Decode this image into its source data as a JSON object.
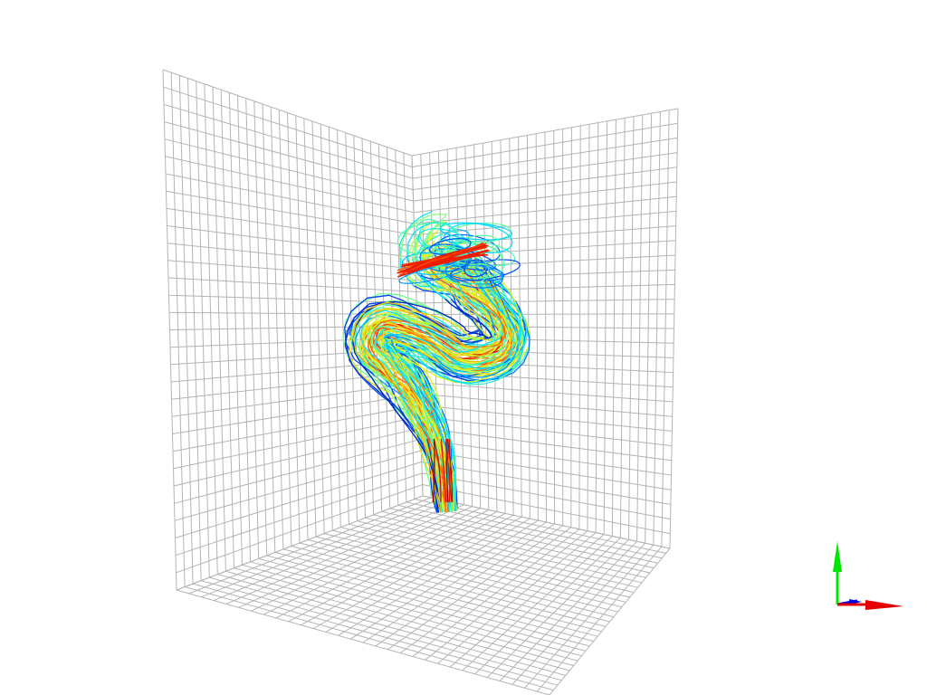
{
  "scene": {
    "background_color": "#ffffff",
    "grid_color": "#b4b4b4",
    "grid_divisions": 30,
    "colormap": "jet",
    "colormap_stops": [
      "#00008f",
      "#0050ff",
      "#00dfff",
      "#60ff9f",
      "#dfff20",
      "#ff9f00",
      "#ff2000",
      "#8f0000"
    ],
    "streamline_count": 70
  },
  "axes_triad": {
    "x_axis_color": "#e60000",
    "y_axis_color": "#00e600",
    "z_axis_color": "#0000e6"
  }
}
